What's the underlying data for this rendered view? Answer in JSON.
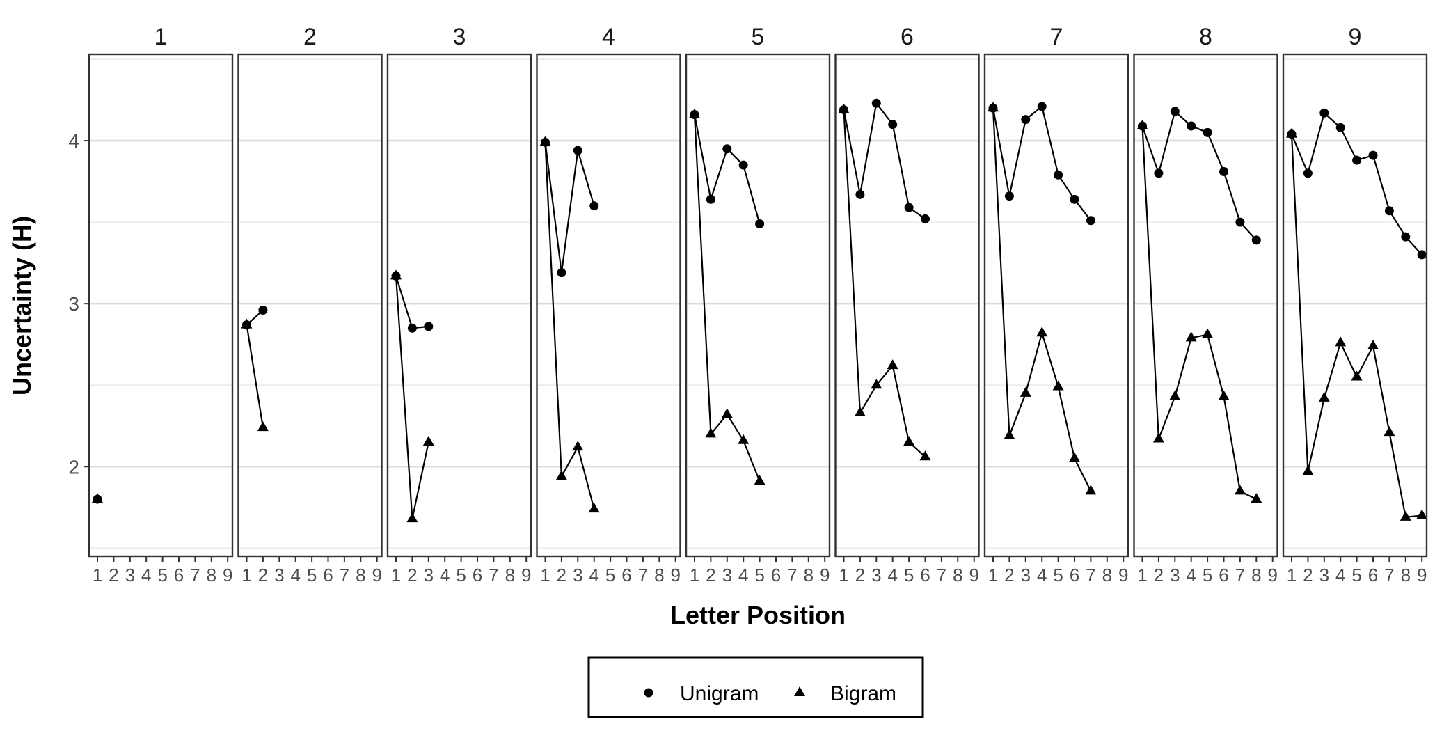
{
  "chart_data": {
    "type": "line",
    "facet_titles": [
      "1",
      "2",
      "3",
      "4",
      "5",
      "6",
      "7",
      "8",
      "9"
    ],
    "xlabel": "Letter Position",
    "ylabel": "Uncertainty (H)",
    "x_ticks": [
      1,
      2,
      3,
      4,
      5,
      6,
      7,
      8,
      9
    ],
    "x_tick_labels": [
      "1",
      "2",
      "3",
      "4",
      "5",
      "6",
      "7",
      "8",
      "9"
    ],
    "xlim": [
      1,
      9
    ],
    "y_ticks": [
      2,
      3,
      4
    ],
    "y_tick_labels": [
      "2",
      "3",
      "4"
    ],
    "ylim": [
      1.45,
      4.53
    ],
    "grid": true,
    "legend": {
      "position": "bottom",
      "entries": [
        {
          "label": "Unigram",
          "marker": "circle"
        },
        {
          "label": "Bigram",
          "marker": "triangle"
        }
      ]
    },
    "panels": [
      {
        "facet": "1",
        "series": [
          {
            "name": "Unigram",
            "x": [
              1
            ],
            "y": [
              1.8
            ]
          },
          {
            "name": "Bigram",
            "x": [
              1
            ],
            "y": [
              1.8
            ]
          }
        ]
      },
      {
        "facet": "2",
        "series": [
          {
            "name": "Unigram",
            "x": [
              1,
              2
            ],
            "y": [
              2.87,
              2.96
            ]
          },
          {
            "name": "Bigram",
            "x": [
              1,
              2
            ],
            "y": [
              2.87,
              2.24
            ]
          }
        ]
      },
      {
        "facet": "3",
        "series": [
          {
            "name": "Unigram",
            "x": [
              1,
              2,
              3
            ],
            "y": [
              3.17,
              2.85,
              2.86
            ]
          },
          {
            "name": "Bigram",
            "x": [
              1,
              2,
              3
            ],
            "y": [
              3.17,
              1.68,
              2.15
            ]
          }
        ]
      },
      {
        "facet": "4",
        "series": [
          {
            "name": "Unigram",
            "x": [
              1,
              2,
              3,
              4
            ],
            "y": [
              3.99,
              3.19,
              3.94,
              3.6
            ]
          },
          {
            "name": "Bigram",
            "x": [
              1,
              2,
              3,
              4
            ],
            "y": [
              3.99,
              1.94,
              2.12,
              1.74
            ]
          }
        ]
      },
      {
        "facet": "5",
        "series": [
          {
            "name": "Unigram",
            "x": [
              1,
              2,
              3,
              4,
              5
            ],
            "y": [
              4.16,
              3.64,
              3.95,
              3.85,
              3.49
            ]
          },
          {
            "name": "Bigram",
            "x": [
              1,
              2,
              3,
              4,
              5
            ],
            "y": [
              4.16,
              2.2,
              2.32,
              2.16,
              1.91
            ]
          }
        ]
      },
      {
        "facet": "6",
        "series": [
          {
            "name": "Unigram",
            "x": [
              1,
              2,
              3,
              4,
              5,
              6
            ],
            "y": [
              4.19,
              3.67,
              4.23,
              4.1,
              3.59,
              3.52
            ]
          },
          {
            "name": "Bigram",
            "x": [
              1,
              2,
              3,
              4,
              5,
              6
            ],
            "y": [
              4.19,
              2.33,
              2.5,
              2.62,
              2.15,
              2.06
            ]
          }
        ]
      },
      {
        "facet": "7",
        "series": [
          {
            "name": "Unigram",
            "x": [
              1,
              2,
              3,
              4,
              5,
              6,
              7
            ],
            "y": [
              4.2,
              3.66,
              4.13,
              4.21,
              3.79,
              3.64,
              3.51
            ]
          },
          {
            "name": "Bigram",
            "x": [
              1,
              2,
              3,
              4,
              5,
              6,
              7
            ],
            "y": [
              4.2,
              2.19,
              2.45,
              2.82,
              2.49,
              2.05,
              1.85
            ]
          }
        ]
      },
      {
        "facet": "8",
        "series": [
          {
            "name": "Unigram",
            "x": [
              1,
              2,
              3,
              4,
              5,
              6,
              7,
              8
            ],
            "y": [
              4.09,
              3.8,
              4.18,
              4.09,
              4.05,
              3.81,
              3.5,
              3.39
            ]
          },
          {
            "name": "Bigram",
            "x": [
              1,
              2,
              3,
              4,
              5,
              6,
              7,
              8
            ],
            "y": [
              4.09,
              2.17,
              2.43,
              2.79,
              2.81,
              2.43,
              1.85,
              1.8
            ]
          }
        ]
      },
      {
        "facet": "9",
        "series": [
          {
            "name": "Unigram",
            "x": [
              1,
              2,
              3,
              4,
              5,
              6,
              7,
              8,
              9
            ],
            "y": [
              4.04,
              3.8,
              4.17,
              4.08,
              3.88,
              3.91,
              3.57,
              3.41,
              3.3
            ]
          },
          {
            "name": "Bigram",
            "x": [
              1,
              2,
              3,
              4,
              5,
              6,
              7,
              8,
              9
            ],
            "y": [
              4.04,
              1.97,
              2.42,
              2.76,
              2.55,
              2.74,
              2.21,
              1.69,
              1.7
            ]
          }
        ]
      }
    ]
  }
}
